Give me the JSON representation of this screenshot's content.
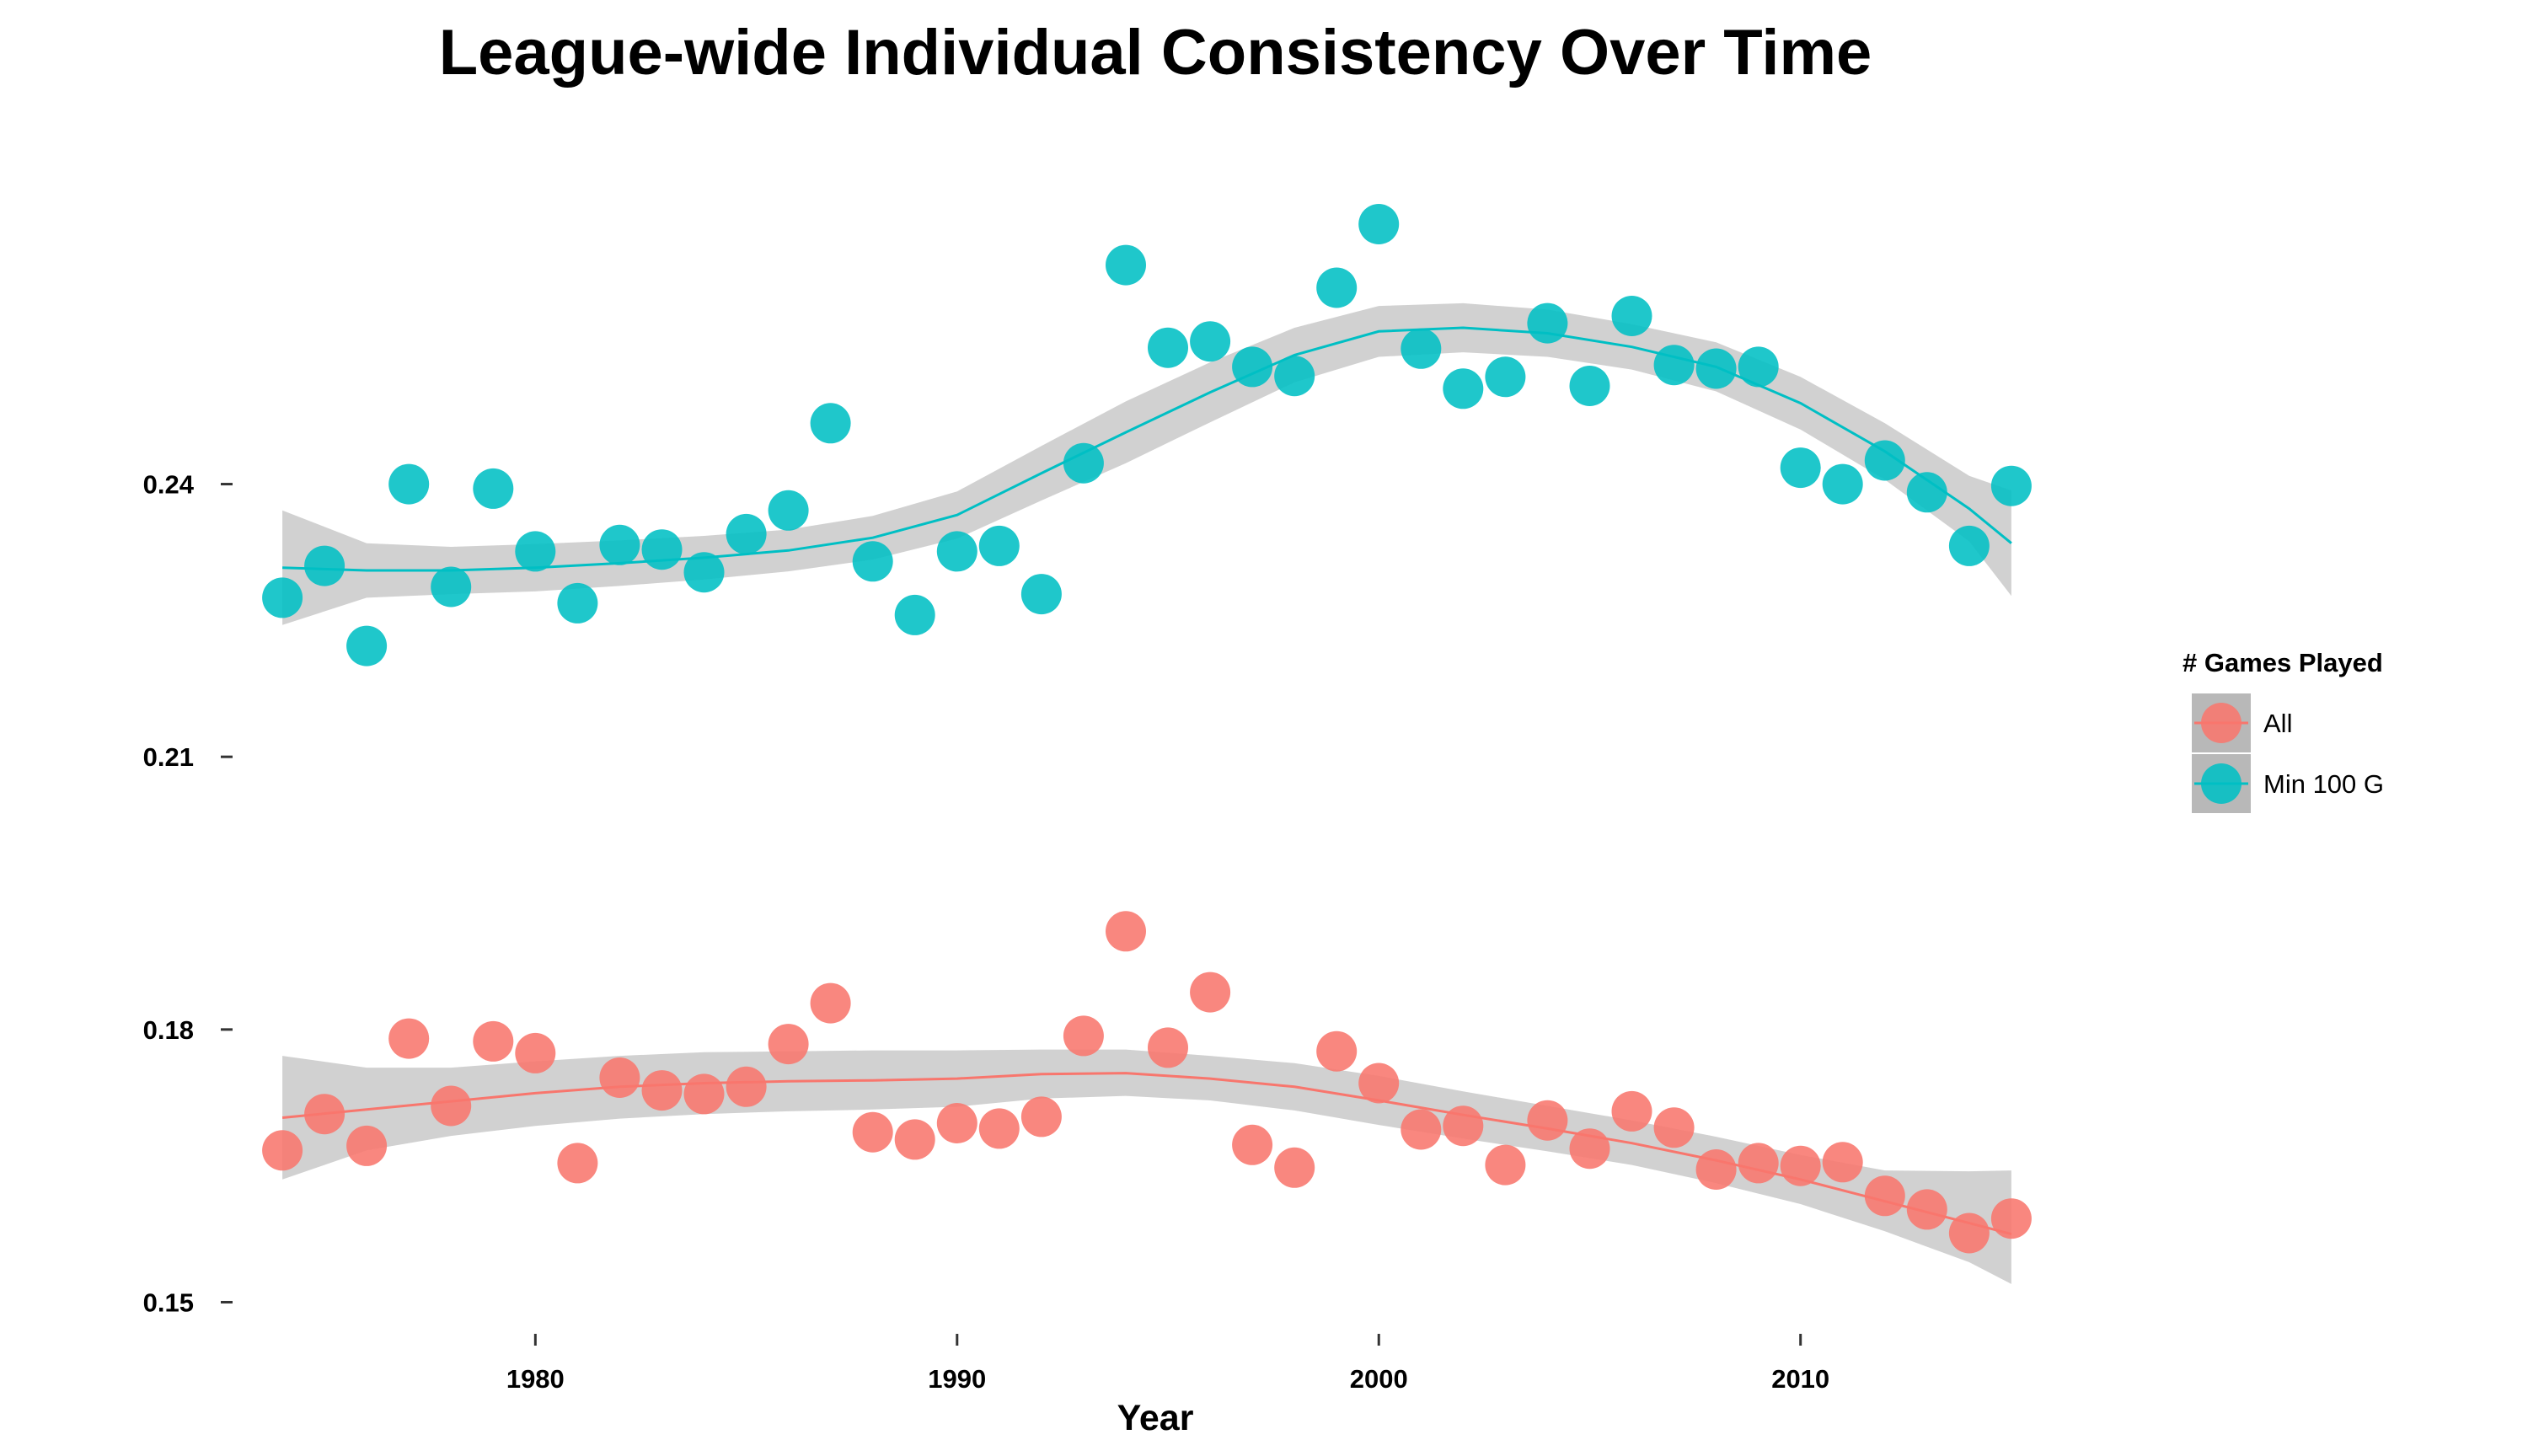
{
  "chart_data": {
    "type": "scatter",
    "title": "League-wide Individual Consistency Over Time",
    "xlabel": "Year",
    "ylabel": "",
    "xlim": [
      1972.9,
      2016.5
    ],
    "ylim": [
      0.1468,
      0.2775
    ],
    "x_ticks": [
      1980,
      1990,
      2000,
      2010
    ],
    "y_ticks": [
      0.15,
      0.18,
      0.21,
      0.24
    ],
    "y_tick_labels": [
      "0.15",
      "0.18",
      "0.21",
      "0.24"
    ],
    "grid": false,
    "smoother": "loess with shaded confidence band",
    "legend": {
      "title": "# Games Played",
      "position": "right"
    },
    "years": [
      1974,
      1975,
      1976,
      1977,
      1978,
      1979,
      1980,
      1981,
      1982,
      1983,
      1984,
      1985,
      1986,
      1987,
      1988,
      1989,
      1990,
      1991,
      1992,
      1993,
      1994,
      1995,
      1996,
      1997,
      1998,
      1999,
      2000,
      2001,
      2002,
      2003,
      2004,
      2005,
      2006,
      2007,
      2008,
      2009,
      2010,
      2011,
      2012,
      2013,
      2014,
      2015
    ],
    "series": [
      {
        "name": "All",
        "color": "#F8766D",
        "values": [
          0.1667,
          0.1707,
          0.1672,
          0.179,
          0.1716,
          0.1787,
          0.1774,
          0.1653,
          0.1747,
          0.1733,
          0.1729,
          0.1737,
          0.1784,
          0.1829,
          0.1687,
          0.1679,
          0.1697,
          0.1691,
          0.1704,
          0.1793,
          0.1908,
          0.178,
          0.1841,
          0.1673,
          0.1648,
          0.1776,
          0.1741,
          0.169,
          0.1694,
          0.1651,
          0.17,
          0.1669,
          0.171,
          0.1692,
          0.1646,
          0.1653,
          0.165,
          0.1654,
          0.1617,
          0.1602,
          0.1576,
          0.1592
        ],
        "trend": {
          "x": [
            1974,
            1976,
            1978,
            1980,
            1982,
            1984,
            1986,
            1988,
            1990,
            1992,
            1994,
            1996,
            1998,
            2000,
            2002,
            2004,
            2006,
            2008,
            2010,
            2012,
            2014,
            2015
          ],
          "y": [
            0.1703,
            0.1712,
            0.1721,
            0.173,
            0.1737,
            0.1741,
            0.1743,
            0.1744,
            0.1746,
            0.1751,
            0.1752,
            0.1746,
            0.1737,
            0.1722,
            0.1706,
            0.1691,
            0.1675,
            0.1656,
            0.1635,
            0.1611,
            0.1587,
            0.1575
          ],
          "lower": [
            0.1635,
            0.1667,
            0.1683,
            0.1694,
            0.1702,
            0.1707,
            0.171,
            0.1712,
            0.1715,
            0.1724,
            0.1727,
            0.1722,
            0.1711,
            0.1695,
            0.168,
            0.1666,
            0.1651,
            0.1631,
            0.1608,
            0.1578,
            0.1544,
            0.152
          ],
          "upper": [
            0.1771,
            0.1758,
            0.1758,
            0.1765,
            0.1771,
            0.1775,
            0.1776,
            0.1777,
            0.1777,
            0.1778,
            0.1778,
            0.1771,
            0.1763,
            0.1749,
            0.1732,
            0.1716,
            0.17,
            0.1682,
            0.1662,
            0.1645,
            0.1644,
            0.1645
          ]
        }
      },
      {
        "name": "Min 100 G",
        "color": "#00BFC4",
        "values": [
          0.2275,
          0.231,
          0.2222,
          0.24,
          0.2287,
          0.2395,
          0.2326,
          0.2269,
          0.2333,
          0.2328,
          0.2303,
          0.2345,
          0.2371,
          0.2467,
          0.2315,
          0.2256,
          0.2326,
          0.2332,
          0.2279,
          0.2423,
          0.2641,
          0.255,
          0.2557,
          0.2529,
          0.2519,
          0.2616,
          0.2686,
          0.2549,
          0.2505,
          0.2518,
          0.2577,
          0.2508,
          0.2585,
          0.2531,
          0.2527,
          0.2529,
          0.2418,
          0.24,
          0.2426,
          0.2391,
          0.2332,
          0.2398
        ],
        "trend": {
          "x": [
            1974,
            1976,
            1978,
            1980,
            1982,
            1984,
            1986,
            1988,
            1990,
            1992,
            1994,
            1996,
            1998,
            2000,
            2002,
            2004,
            2006,
            2008,
            2010,
            2012,
            2014,
            2015
          ],
          "y": [
            0.2308,
            0.2305,
            0.2305,
            0.2308,
            0.2313,
            0.2319,
            0.2327,
            0.2341,
            0.2366,
            0.2412,
            0.2457,
            0.2501,
            0.2542,
            0.2568,
            0.2572,
            0.2566,
            0.2551,
            0.2529,
            0.2489,
            0.2436,
            0.2373,
            0.2335
          ],
          "lower": [
            0.2245,
            0.2275,
            0.2279,
            0.2282,
            0.2288,
            0.2295,
            0.2304,
            0.2317,
            0.234,
            0.2382,
            0.2423,
            0.2468,
            0.2512,
            0.254,
            0.2545,
            0.254,
            0.2526,
            0.2502,
            0.246,
            0.2405,
            0.2337,
            0.2277
          ],
          "upper": [
            0.2371,
            0.2335,
            0.2331,
            0.2334,
            0.2338,
            0.2343,
            0.235,
            0.2365,
            0.2392,
            0.2442,
            0.2491,
            0.2534,
            0.2572,
            0.2596,
            0.2599,
            0.2592,
            0.2576,
            0.2556,
            0.2518,
            0.2467,
            0.2409,
            0.2393
          ]
        }
      }
    ]
  }
}
